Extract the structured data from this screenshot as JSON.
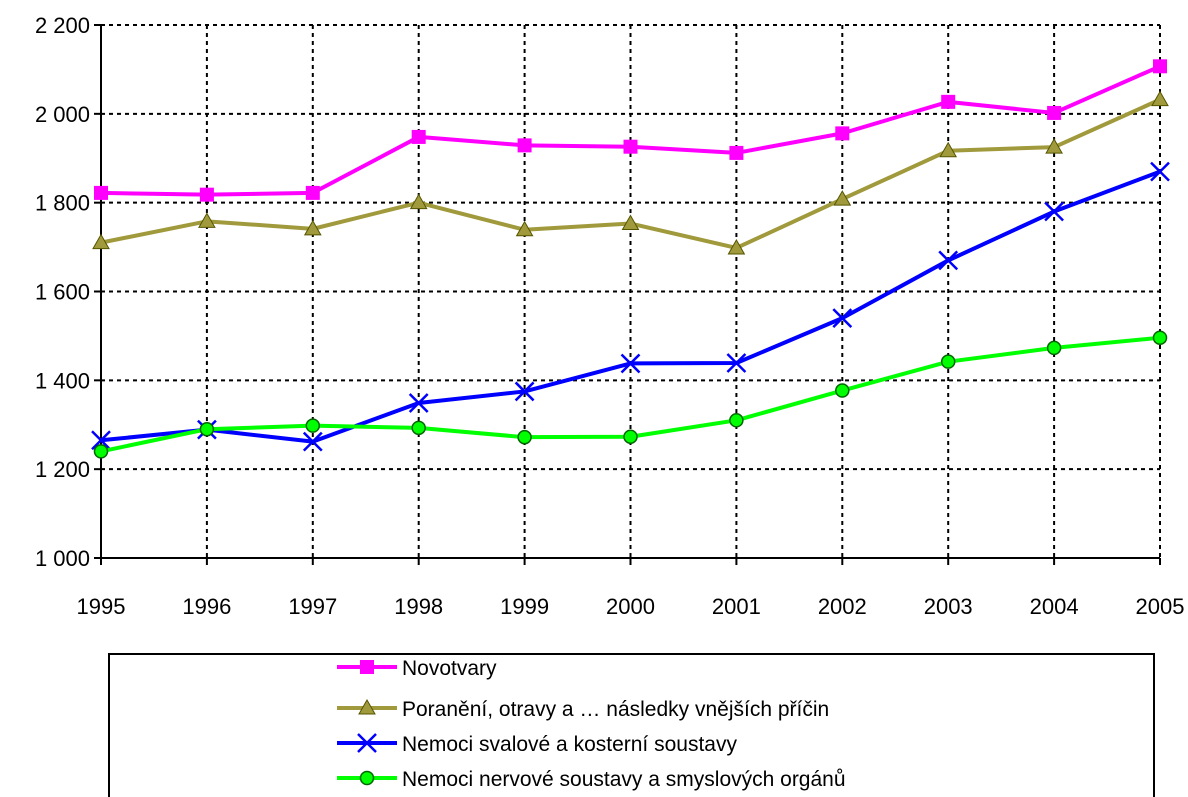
{
  "chart_data": {
    "type": "line",
    "title": "",
    "xlabel": "",
    "ylabel": "",
    "x": [
      "1995",
      "1996",
      "1997",
      "1998",
      "1999",
      "2000",
      "2001",
      "2002",
      "2003",
      "2004",
      "2005"
    ],
    "ylim": [
      1000,
      2200
    ],
    "yticks": [
      1000,
      1200,
      1400,
      1600,
      1800,
      2000,
      2200
    ],
    "ytick_labels": [
      "1 000",
      "1 200",
      "1 400",
      "1 600",
      "1 800",
      "2 000",
      "2 200"
    ],
    "grid": true,
    "grid_style": "dotted",
    "legend_position": "bottom",
    "series": [
      {
        "name": "Novotvary",
        "color": "#ff00ff",
        "marker": "square",
        "values": [
          1822,
          1818,
          1822,
          1948,
          1929,
          1926,
          1912,
          1956,
          2027,
          2002,
          2107
        ]
      },
      {
        "name": "Poranění, otravy a … následky vnějších příčin",
        "color": "#a09a3c",
        "marker": "triangle",
        "values": [
          1710,
          1758,
          1741,
          1800,
          1739,
          1753,
          1698,
          1808,
          1917,
          1925,
          2032
        ]
      },
      {
        "name": "Nemoci svalové a kosterní soustavy",
        "color": "#0000ff",
        "marker": "x",
        "values": [
          1265,
          1289,
          1262,
          1349,
          1375,
          1438,
          1439,
          1540,
          1670,
          1780,
          1870
        ]
      },
      {
        "name": "Nemoci nervové soustavy a smyslových orgánů",
        "color": "#00ff00",
        "marker": "circle",
        "values": [
          1240,
          1290,
          1298,
          1293,
          1272,
          1273,
          1310,
          1377,
          1442,
          1473,
          1496
        ]
      }
    ]
  }
}
